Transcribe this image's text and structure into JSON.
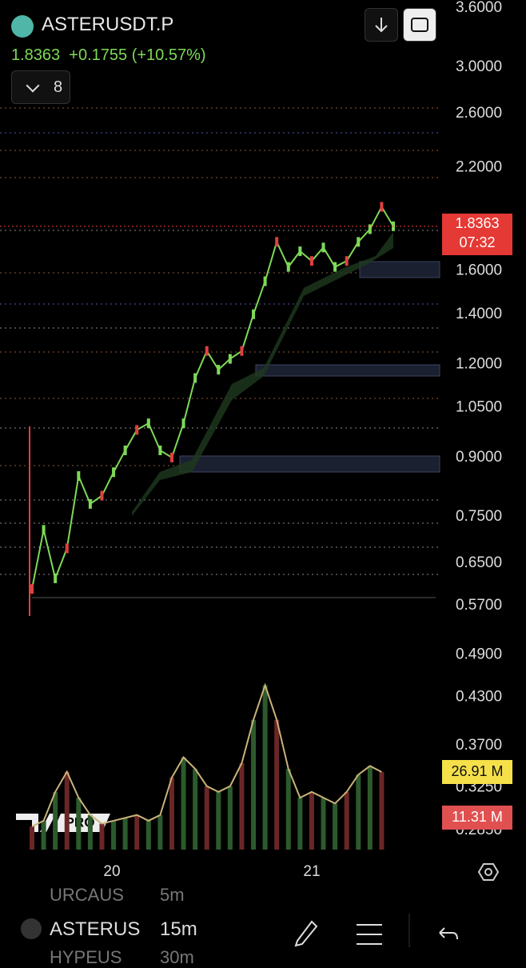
{
  "header": {
    "symbol": "ASTERUSDT.P",
    "price": "1.8363",
    "change": "+0.1755 (+10.57%)",
    "indicator_count": "8"
  },
  "price_axis": {
    "scale": "log",
    "ticks": [
      {
        "value": 3.6,
        "label": "3.6000"
      },
      {
        "value": 3.0,
        "label": "3.0000"
      },
      {
        "value": 2.6,
        "label": "2.6000"
      },
      {
        "value": 2.2,
        "label": "2.2000"
      },
      {
        "value": 1.6,
        "label": "1.6000"
      },
      {
        "value": 1.4,
        "label": "1.4000"
      },
      {
        "value": 1.2,
        "label": "1.2000"
      },
      {
        "value": 1.05,
        "label": "1.0500"
      },
      {
        "value": 0.9,
        "label": "0.9000"
      },
      {
        "value": 0.75,
        "label": "0.7500"
      },
      {
        "value": 0.65,
        "label": "0.6500"
      },
      {
        "value": 0.57,
        "label": "0.5700"
      },
      {
        "value": 0.49,
        "label": "0.4900"
      },
      {
        "value": 0.43,
        "label": "0.4300"
      },
      {
        "value": 0.37,
        "label": "0.3700"
      },
      {
        "value": 0.325,
        "label": "0.3250"
      },
      {
        "value": 0.285,
        "label": "0.2850"
      }
    ]
  },
  "price_line": {
    "color": "#7ed957",
    "values": [
      0.6,
      0.72,
      0.62,
      0.68,
      0.85,
      0.78,
      0.8,
      0.86,
      0.92,
      0.98,
      1.0,
      0.92,
      0.9,
      1.0,
      1.15,
      1.25,
      1.18,
      1.22,
      1.25,
      1.4,
      1.55,
      1.75,
      1.62,
      1.7,
      1.65,
      1.72,
      1.62,
      1.65,
      1.75,
      1.82,
      1.95,
      1.8363
    ]
  },
  "price_tag": {
    "price": {
      "value": 1.8363,
      "label": "1.8363"
    },
    "countdown": "07:32"
  },
  "volume": {
    "color": "#c9b37a",
    "values": [
      8,
      10,
      20,
      27,
      18,
      12,
      9,
      10,
      11,
      12,
      10,
      12,
      25,
      32,
      28,
      22,
      20,
      22,
      30,
      45,
      57,
      45,
      28,
      18,
      20,
      18,
      16,
      20,
      26,
      29,
      26.91
    ],
    "tags": [
      {
        "value": 26.91,
        "label": "26.91 M"
      },
      {
        "value": 11.31,
        "label": "11.31 M"
      }
    ]
  },
  "time_axis": [
    "20",
    "21"
  ],
  "watermark": "PRO",
  "toolbar": {
    "symbols": [
      "URCAUS",
      "ASTERUS",
      "HYPEUS"
    ],
    "intervals": [
      "5m",
      "15m",
      "30m"
    ]
  }
}
